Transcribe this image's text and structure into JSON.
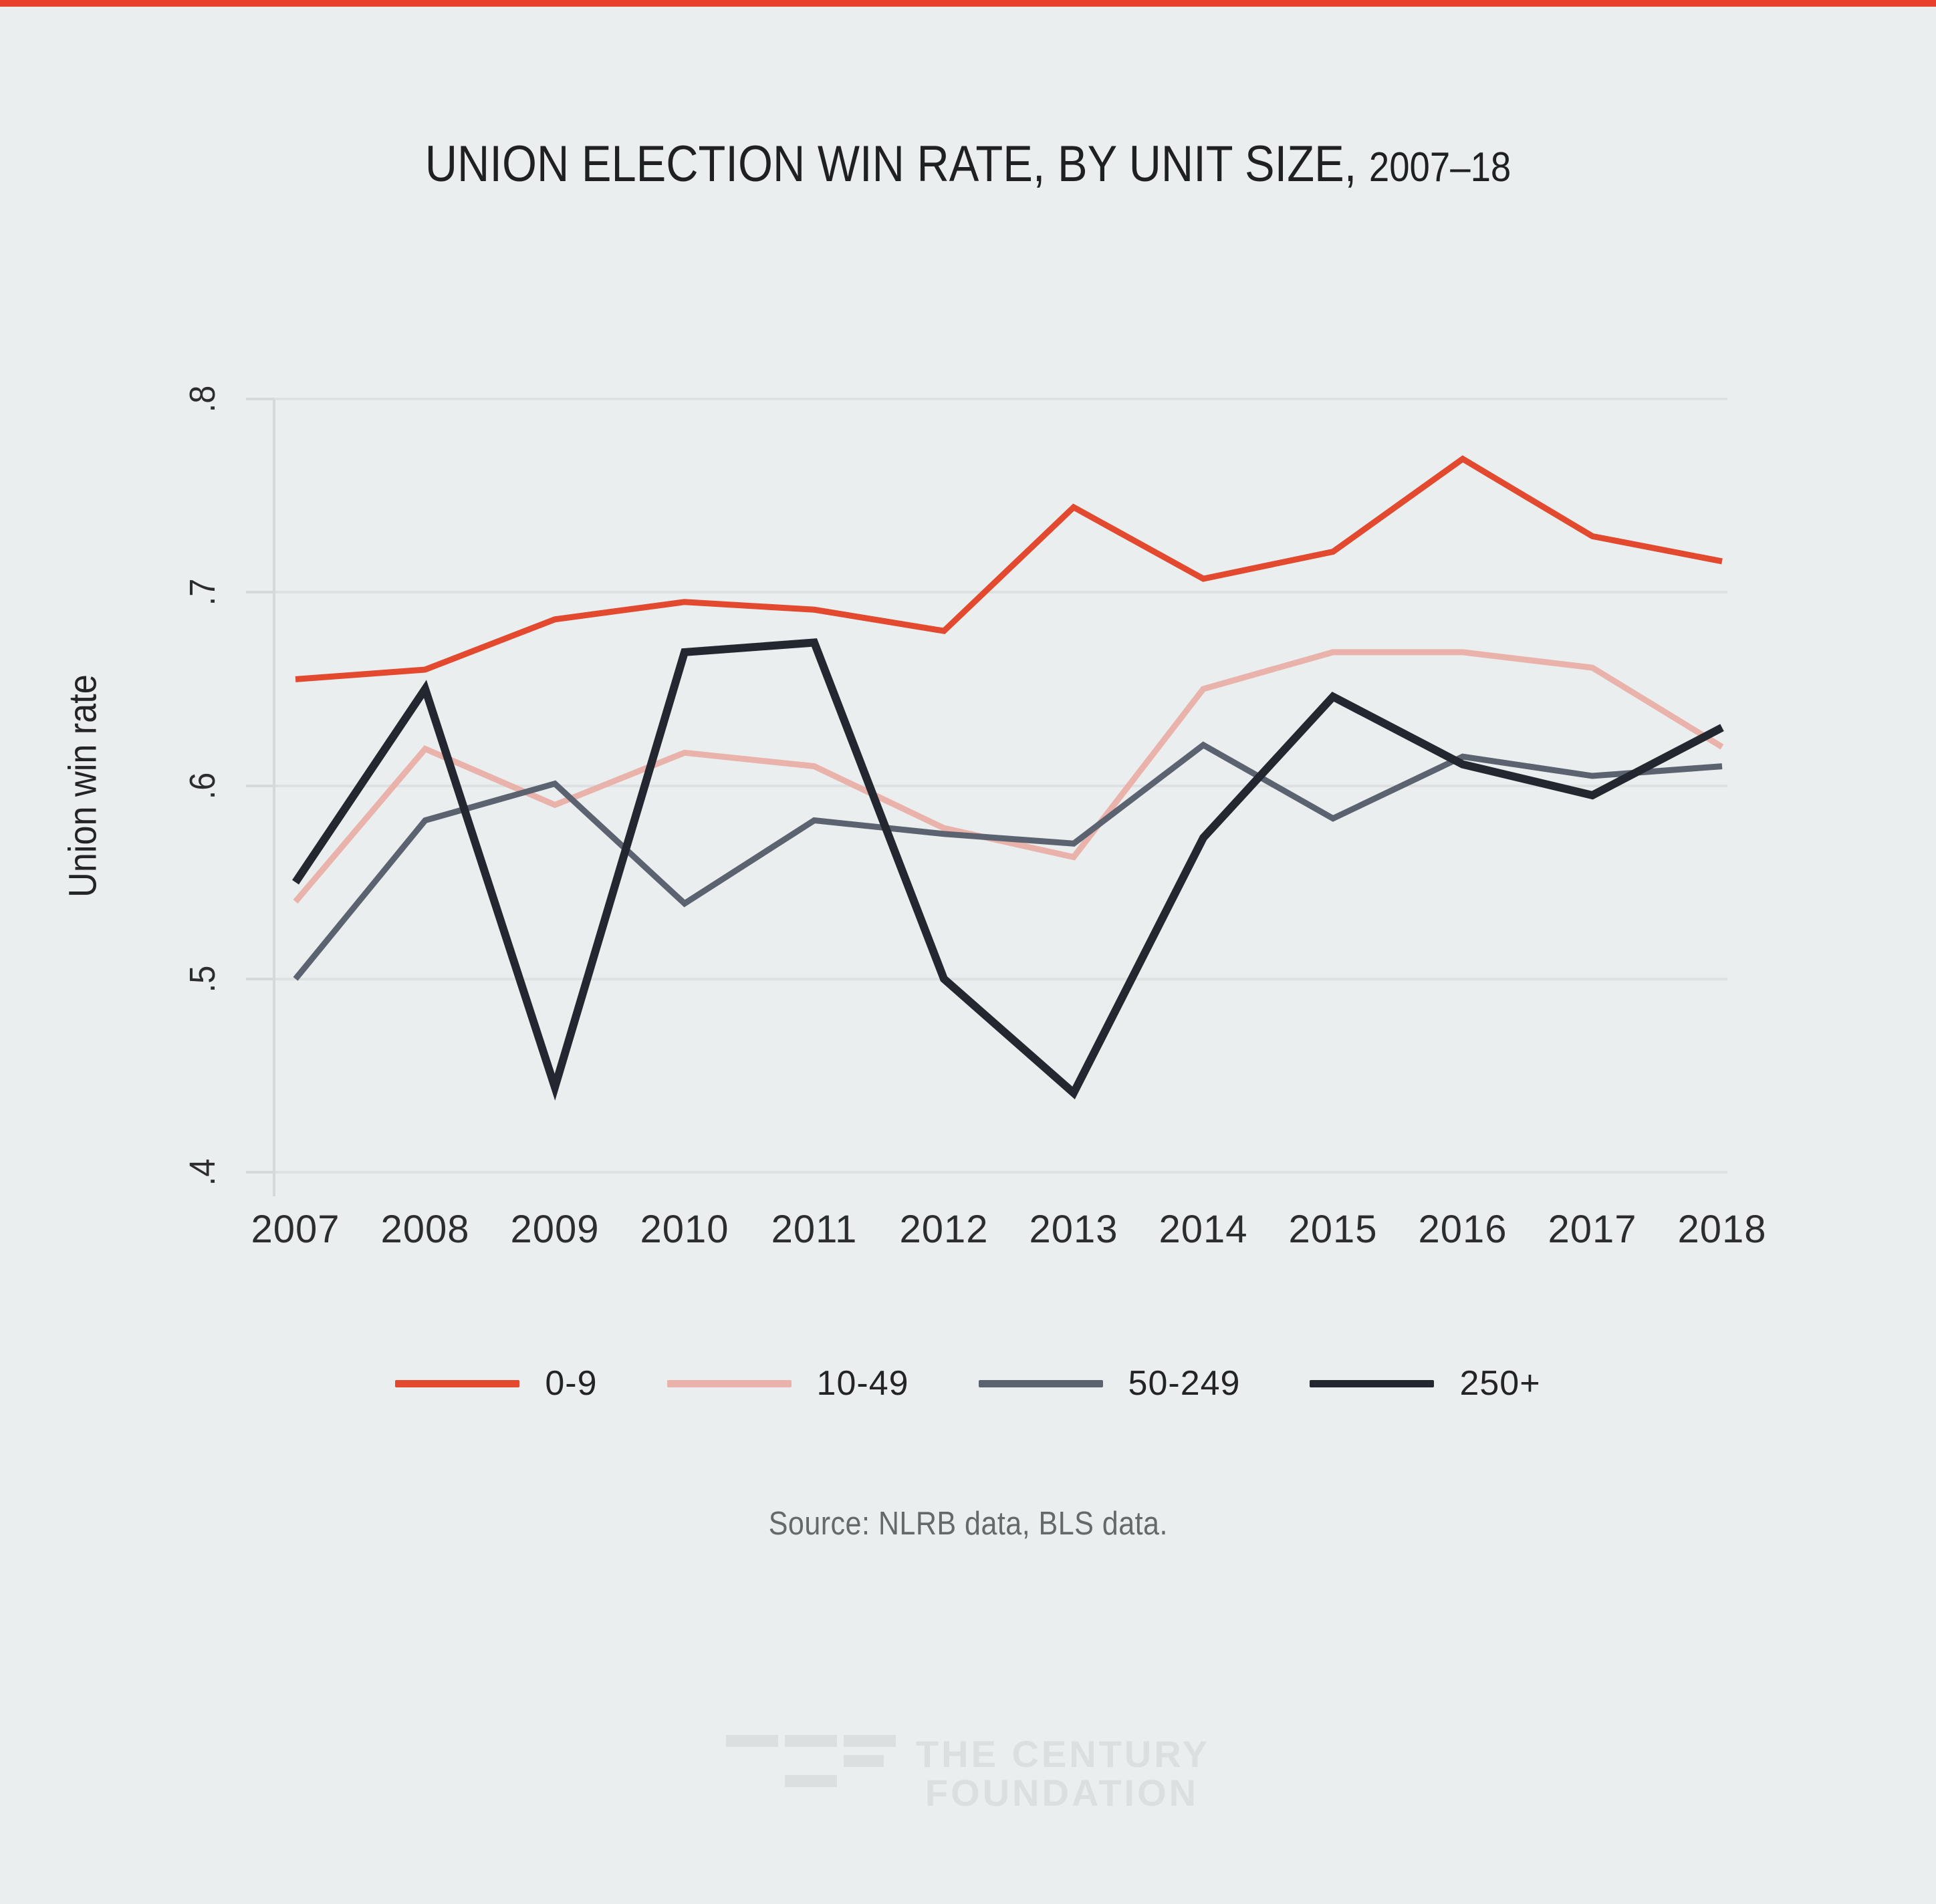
{
  "page": {
    "background": "#ebeeee",
    "accent_bar_color": "#e8402d"
  },
  "title": {
    "main": "UNION ELECTION WIN RATE, BY UNIT SIZE,",
    "period": "2007–18"
  },
  "y_axis": {
    "label": "Union win rate",
    "tick_labels": [
      ".8",
      ".7",
      ".6",
      ".5",
      ".4"
    ],
    "tick_values": [
      0.8,
      0.7,
      0.6,
      0.5,
      0.4
    ]
  },
  "x_axis": {
    "tick_labels": [
      "2007",
      "2008",
      "2009",
      "2010",
      "2011",
      "2012",
      "2013",
      "2014",
      "2015",
      "2016",
      "2017",
      "2018"
    ]
  },
  "source": {
    "text": "Source: NLRB data, BLS data."
  },
  "logo": {
    "line1": "THE CENTURY",
    "line2": "FOUNDATION"
  },
  "chart_data": {
    "type": "line",
    "title": "UNION ELECTION WIN RATE, BY UNIT SIZE, 2007–18",
    "xlabel": "",
    "ylabel": "Union win rate",
    "ylim": [
      0.4,
      0.8
    ],
    "grid": true,
    "legend_position": "bottom",
    "x": [
      2007,
      2008,
      2009,
      2010,
      2011,
      2012,
      2013,
      2014,
      2015,
      2016,
      2017,
      2018
    ],
    "series": [
      {
        "name": "0-9",
        "color": "#e2492f",
        "stroke_width": 9,
        "values": [
          0.655,
          0.66,
          0.686,
          0.695,
          0.691,
          0.68,
          0.744,
          0.707,
          0.721,
          0.769,
          0.729,
          0.716
        ]
      },
      {
        "name": "10-49",
        "color": "#e9b2aa",
        "stroke_width": 9,
        "values": [
          0.54,
          0.619,
          0.59,
          0.617,
          0.61,
          0.578,
          0.563,
          0.65,
          0.669,
          0.669,
          0.661,
          0.62
        ]
      },
      {
        "name": "50-249",
        "color": "#5c6370",
        "stroke_width": 9,
        "values": [
          0.5,
          0.582,
          0.601,
          0.539,
          0.582,
          0.575,
          0.57,
          0.621,
          0.583,
          0.615,
          0.605,
          0.61
        ]
      },
      {
        "name": "250+",
        "color": "#23272f",
        "stroke_width": 12,
        "values": [
          0.55,
          0.65,
          0.444,
          0.669,
          0.674,
          0.5,
          0.441,
          0.573,
          0.646,
          0.611,
          0.595,
          0.63
        ]
      }
    ]
  }
}
